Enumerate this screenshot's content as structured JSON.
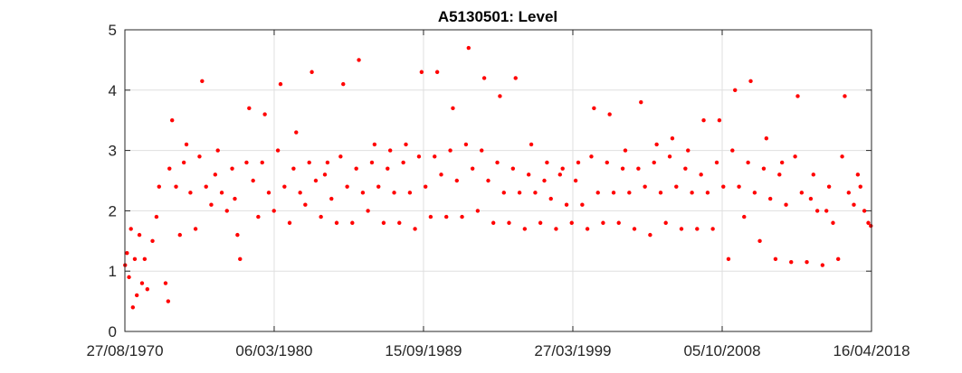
{
  "chart_data": {
    "type": "scatter",
    "title": "A5130501: Level",
    "xlabel": "",
    "ylabel": "",
    "marker_color": "#ff0000",
    "grid": true,
    "legend": "none",
    "x_axis": {
      "type": "date",
      "range": [
        "1970-08-27",
        "2018-04-16"
      ],
      "ticks": [
        {
          "date": "1970-08-27",
          "label": "27/08/1970"
        },
        {
          "date": "1980-03-06",
          "label": "06/03/1980"
        },
        {
          "date": "1989-09-15",
          "label": "15/09/1989"
        },
        {
          "date": "1999-03-27",
          "label": "27/03/1999"
        },
        {
          "date": "2008-10-05",
          "label": "05/10/2008"
        },
        {
          "date": "2018-04-16",
          "label": "16/04/2018"
        }
      ]
    },
    "y_axis": {
      "range": [
        0,
        5
      ],
      "ticks": [
        0,
        1,
        2,
        3,
        4,
        5
      ],
      "tick_labels": [
        "0",
        "1",
        "2",
        "3",
        "4",
        "5"
      ]
    },
    "series": [
      {
        "points": [
          [
            "1970-09-01",
            1.1
          ],
          [
            "1970-10-15",
            1.3
          ],
          [
            "1970-12-01",
            0.9
          ],
          [
            "1971-01-15",
            1.7
          ],
          [
            "1971-03-01",
            0.4
          ],
          [
            "1971-04-15",
            1.2
          ],
          [
            "1971-06-01",
            0.6
          ],
          [
            "1971-08-01",
            1.6
          ],
          [
            "1971-10-01",
            0.8
          ],
          [
            "1971-12-01",
            1.2
          ],
          [
            "1972-02-01",
            0.7
          ],
          [
            "1972-06-01",
            1.5
          ],
          [
            "1972-09-01",
            1.9
          ],
          [
            "1972-11-01",
            2.4
          ],
          [
            "1973-04-01",
            0.8
          ],
          [
            "1973-06-01",
            0.5
          ],
          [
            "1973-07-01",
            2.7
          ],
          [
            "1973-09-01",
            3.5
          ],
          [
            "1973-12-01",
            2.4
          ],
          [
            "1974-03-01",
            1.6
          ],
          [
            "1974-06-01",
            2.8
          ],
          [
            "1974-08-01",
            3.1
          ],
          [
            "1974-11-01",
            2.3
          ],
          [
            "1975-03-01",
            1.7
          ],
          [
            "1975-06-01",
            2.9
          ],
          [
            "1975-08-01",
            4.15
          ],
          [
            "1975-11-01",
            2.4
          ],
          [
            "1976-03-01",
            2.1
          ],
          [
            "1976-06-01",
            2.6
          ],
          [
            "1976-08-01",
            3.0
          ],
          [
            "1976-11-01",
            2.3
          ],
          [
            "1977-03-01",
            2.0
          ],
          [
            "1977-07-01",
            2.7
          ],
          [
            "1977-09-01",
            2.2
          ],
          [
            "1977-11-01",
            1.6
          ],
          [
            "1978-01-01",
            1.2
          ],
          [
            "1978-06-01",
            2.8
          ],
          [
            "1978-08-01",
            3.7
          ],
          [
            "1978-11-01",
            2.5
          ],
          [
            "1979-03-01",
            1.9
          ],
          [
            "1979-06-01",
            2.8
          ],
          [
            "1979-08-01",
            3.6
          ],
          [
            "1979-11-01",
            2.3
          ],
          [
            "1980-03-01",
            2.0
          ],
          [
            "1980-06-01",
            3.0
          ],
          [
            "1980-08-01",
            4.1
          ],
          [
            "1980-11-01",
            2.4
          ],
          [
            "1981-03-01",
            1.8
          ],
          [
            "1981-06-01",
            2.7
          ],
          [
            "1981-08-01",
            3.3
          ],
          [
            "1981-11-01",
            2.3
          ],
          [
            "1982-03-01",
            2.1
          ],
          [
            "1982-06-01",
            2.8
          ],
          [
            "1982-08-01",
            4.3
          ],
          [
            "1982-11-01",
            2.5
          ],
          [
            "1983-03-01",
            1.9
          ],
          [
            "1983-06-01",
            2.6
          ],
          [
            "1983-08-01",
            2.8
          ],
          [
            "1983-11-01",
            2.2
          ],
          [
            "1984-03-01",
            1.8
          ],
          [
            "1984-06-01",
            2.9
          ],
          [
            "1984-08-01",
            4.1
          ],
          [
            "1984-11-01",
            2.4
          ],
          [
            "1985-03-01",
            1.8
          ],
          [
            "1985-06-01",
            2.7
          ],
          [
            "1985-08-01",
            4.5
          ],
          [
            "1985-11-01",
            2.3
          ],
          [
            "1986-03-01",
            2.0
          ],
          [
            "1986-06-01",
            2.8
          ],
          [
            "1986-08-01",
            3.1
          ],
          [
            "1986-11-01",
            2.4
          ],
          [
            "1987-03-01",
            1.8
          ],
          [
            "1987-06-01",
            2.7
          ],
          [
            "1987-08-01",
            3.0
          ],
          [
            "1987-11-01",
            2.3
          ],
          [
            "1988-03-01",
            1.8
          ],
          [
            "1988-06-01",
            2.8
          ],
          [
            "1988-08-01",
            3.1
          ],
          [
            "1988-11-01",
            2.3
          ],
          [
            "1989-03-01",
            1.7
          ],
          [
            "1989-06-01",
            2.9
          ],
          [
            "1989-08-01",
            4.3
          ],
          [
            "1989-11-01",
            2.4
          ],
          [
            "1990-03-01",
            1.9
          ],
          [
            "1990-06-01",
            2.9
          ],
          [
            "1990-08-01",
            4.3
          ],
          [
            "1990-11-01",
            2.6
          ],
          [
            "1991-03-01",
            1.9
          ],
          [
            "1991-06-01",
            3.0
          ],
          [
            "1991-08-01",
            3.7
          ],
          [
            "1991-11-01",
            2.5
          ],
          [
            "1992-03-01",
            1.9
          ],
          [
            "1992-06-01",
            3.1
          ],
          [
            "1992-08-01",
            4.7
          ],
          [
            "1992-11-01",
            2.7
          ],
          [
            "1993-03-01",
            2.0
          ],
          [
            "1993-06-01",
            3.0
          ],
          [
            "1993-08-01",
            4.2
          ],
          [
            "1993-11-01",
            2.5
          ],
          [
            "1994-03-01",
            1.8
          ],
          [
            "1994-06-01",
            2.8
          ],
          [
            "1994-08-01",
            3.9
          ],
          [
            "1994-11-01",
            2.3
          ],
          [
            "1995-03-01",
            1.8
          ],
          [
            "1995-06-01",
            2.7
          ],
          [
            "1995-08-01",
            4.2
          ],
          [
            "1995-11-01",
            2.3
          ],
          [
            "1996-03-01",
            1.7
          ],
          [
            "1996-06-01",
            2.6
          ],
          [
            "1996-08-01",
            3.1
          ],
          [
            "1996-11-01",
            2.3
          ],
          [
            "1997-03-01",
            1.8
          ],
          [
            "1997-06-01",
            2.5
          ],
          [
            "1997-08-01",
            2.8
          ],
          [
            "1997-11-01",
            2.2
          ],
          [
            "1998-03-01",
            1.7
          ],
          [
            "1998-06-01",
            2.6
          ],
          [
            "1998-08-01",
            2.7
          ],
          [
            "1998-11-01",
            2.1
          ],
          [
            "1999-03-01",
            1.8
          ],
          [
            "1999-06-01",
            2.5
          ],
          [
            "1999-08-01",
            2.8
          ],
          [
            "1999-11-01",
            2.1
          ],
          [
            "2000-03-01",
            1.7
          ],
          [
            "2000-06-01",
            2.9
          ],
          [
            "2000-08-01",
            3.7
          ],
          [
            "2000-11-01",
            2.3
          ],
          [
            "2001-03-01",
            1.8
          ],
          [
            "2001-06-01",
            2.8
          ],
          [
            "2001-08-01",
            3.6
          ],
          [
            "2001-11-01",
            2.3
          ],
          [
            "2002-03-01",
            1.8
          ],
          [
            "2002-06-01",
            2.7
          ],
          [
            "2002-08-01",
            3.0
          ],
          [
            "2002-11-01",
            2.3
          ],
          [
            "2003-03-01",
            1.7
          ],
          [
            "2003-06-01",
            2.7
          ],
          [
            "2003-08-01",
            3.8
          ],
          [
            "2003-11-01",
            2.4
          ],
          [
            "2004-03-01",
            1.6
          ],
          [
            "2004-06-01",
            2.8
          ],
          [
            "2004-08-01",
            3.1
          ],
          [
            "2004-11-01",
            2.3
          ],
          [
            "2005-03-01",
            1.8
          ],
          [
            "2005-06-01",
            2.9
          ],
          [
            "2005-08-01",
            3.2
          ],
          [
            "2005-11-01",
            2.4
          ],
          [
            "2006-03-01",
            1.7
          ],
          [
            "2006-06-01",
            2.7
          ],
          [
            "2006-08-01",
            3.0
          ],
          [
            "2006-11-01",
            2.3
          ],
          [
            "2007-03-01",
            1.7
          ],
          [
            "2007-06-01",
            2.6
          ],
          [
            "2007-08-01",
            3.5
          ],
          [
            "2007-11-01",
            2.3
          ],
          [
            "2008-03-01",
            1.7
          ],
          [
            "2008-06-01",
            2.8
          ],
          [
            "2008-08-01",
            3.5
          ],
          [
            "2008-11-01",
            2.4
          ],
          [
            "2009-03-01",
            1.2
          ],
          [
            "2009-06-01",
            3.0
          ],
          [
            "2009-08-01",
            4.0
          ],
          [
            "2009-11-01",
            2.4
          ],
          [
            "2010-03-01",
            1.9
          ],
          [
            "2010-06-01",
            2.8
          ],
          [
            "2010-08-01",
            4.15
          ],
          [
            "2010-11-01",
            2.3
          ],
          [
            "2011-03-01",
            1.5
          ],
          [
            "2011-06-01",
            2.7
          ],
          [
            "2011-08-01",
            3.2
          ],
          [
            "2011-11-01",
            2.2
          ],
          [
            "2012-03-01",
            1.2
          ],
          [
            "2012-06-01",
            2.6
          ],
          [
            "2012-08-01",
            2.8
          ],
          [
            "2012-11-01",
            2.1
          ],
          [
            "2013-03-01",
            1.15
          ],
          [
            "2013-06-01",
            2.9
          ],
          [
            "2013-08-01",
            3.9
          ],
          [
            "2013-11-01",
            2.3
          ],
          [
            "2014-03-01",
            1.15
          ],
          [
            "2014-06-01",
            2.2
          ],
          [
            "2014-08-01",
            2.6
          ],
          [
            "2014-11-01",
            2.0
          ],
          [
            "2015-03-01",
            1.1
          ],
          [
            "2015-06-01",
            2.0
          ],
          [
            "2015-08-01",
            2.4
          ],
          [
            "2015-11-01",
            1.8
          ],
          [
            "2016-03-01",
            1.2
          ],
          [
            "2016-06-01",
            2.9
          ],
          [
            "2016-08-01",
            3.9
          ],
          [
            "2016-11-01",
            2.3
          ],
          [
            "2017-03-01",
            2.1
          ],
          [
            "2017-06-01",
            2.6
          ],
          [
            "2017-08-01",
            2.4
          ],
          [
            "2017-11-01",
            2.0
          ],
          [
            "2018-02-01",
            1.8
          ],
          [
            "2018-04-01",
            1.75
          ]
        ]
      }
    ]
  }
}
